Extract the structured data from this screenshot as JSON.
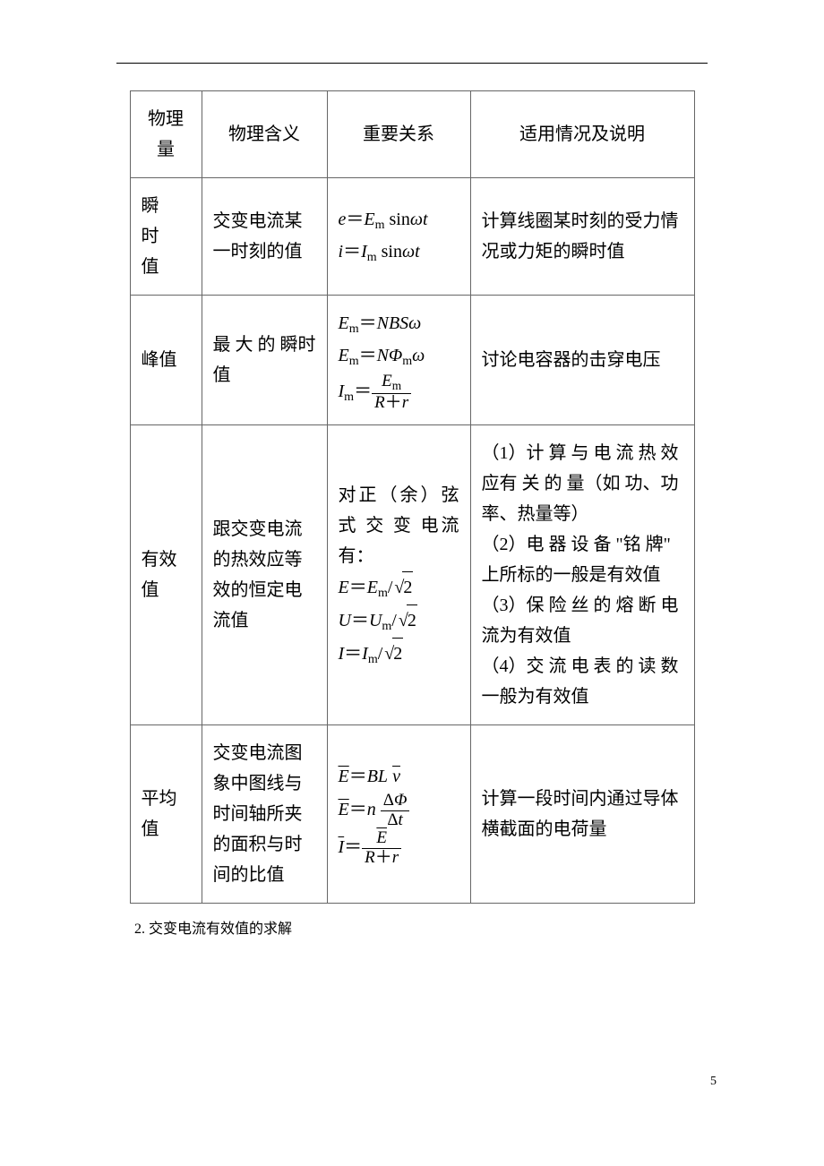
{
  "table": {
    "headers": [
      "物理量",
      "物理含义",
      "重要关系",
      "适用情况及说明"
    ],
    "rows": [
      {
        "c1": "瞬时值",
        "c2": "交变电流某一时刻的值",
        "c3_lines": [
          "e＝Eₘ sinωt",
          "i＝Iₘ sinωt"
        ],
        "c4": "计算线圈某时刻的受力情况或力矩的瞬时值"
      },
      {
        "c1": "峰值",
        "c2": "最 大 的 瞬时值",
        "c3_lines": [
          "Eₘ＝NBSω",
          "Eₘ＝NΦₘω",
          "Iₘ＝Eₘ/(R+r)"
        ],
        "c4": "讨论电容器的击穿电压"
      },
      {
        "c1": "有效值",
        "c2": "跟交变电流的热效应等效的恒定电流值",
        "c3_intro": "对正（余）弦 式 交 变 电流有：",
        "c3_lines": [
          "E＝Eₘ/√2",
          "U＝Uₘ/√2",
          "I＝Iₘ/√2"
        ],
        "c4_lines": [
          "（1）计 算 与 电 流 热 效 应有 关 的 量（如 功、功 率、热量等）",
          "（2）电 器 设 备 \"铭 牌\" 上所标的一般是有效值",
          "（3）保 险 丝 的 熔 断 电 流为有效值",
          "（4）交 流 电 表 的 读 数 一般为有效值"
        ]
      },
      {
        "c1": "平均值",
        "c2": "交变电流图象中图线与时间轴所夹的面积与时间的比值",
        "c3_lines": [
          "E̅＝BL v̅",
          "E̅＝n ΔΦ/Δt",
          "I̅＝E̅/(R+r)"
        ],
        "c4": "计算一段时间内通过导体横截面的电荷量"
      }
    ]
  },
  "caption": "2. 交变电流有效值的求解",
  "page_number": "5"
}
